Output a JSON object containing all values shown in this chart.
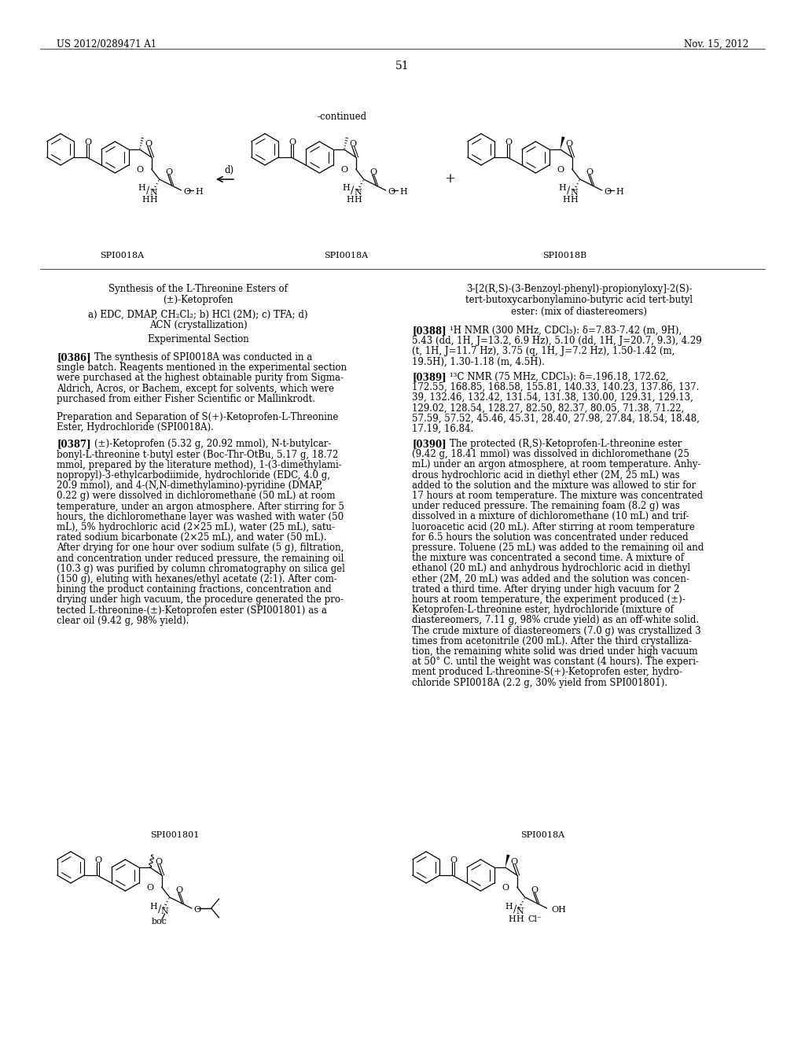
{
  "page_header_left": "US 2012/0289471 A1",
  "page_header_right": "Nov. 15, 2012",
  "page_number": "51",
  "continued_label": "-continued",
  "label_top1": "SPI0018A",
  "label_top2": "SPI0018A",
  "label_top3": "SPI0018B",
  "label_bot1": "SPI001801",
  "label_bot2": "SPI0018A",
  "reaction_arrow_label": "d)",
  "left_title1": "Synthesis of the L-Threonine Esters of",
  "left_title2": "(±)-Ketoprofen",
  "left_subtitle1": "a) EDC, DMAP, CH₂Cl₂; b) HCl (2M); c) TFA; d)",
  "left_subtitle2": "ACN (crystallization)",
  "left_heading": "Experimental Section",
  "right_title1": "3-[2(R,S)-(3-Benzoyl-phenyl)-propionyloxy]-2(S)-",
  "right_title2": "tert-butoxycarbonylamino-butyric acid tert-butyl",
  "right_title3": "ester: (mix of diastereomers)",
  "lines_386": [
    "[0386]   The synthesis of SPI0018A was conducted in a",
    "single batch. Reagents mentioned in the experimental section",
    "were purchased at the highest obtainable purity from Sigma-",
    "Aldrich, Acros, or Bachem, except for solvents, which were",
    "purchased from either Fisher Scientific or Mallinkrodt."
  ],
  "prep_heading1": "Preparation and Separation of S(+)-Ketoprofen-L-Threonine",
  "prep_heading2": "Ester, Hydrochloride (SPI0018A).",
  "lines_387": [
    "[0387]   (±)-Ketoprofen (5.32 g, 20.92 mmol), N-t-butylcar-",
    "bonyl-L-threonine t-butyl ester (Boc-Thr-OtBu, 5.17 g, 18.72",
    "mmol, prepared by the literature method), 1-(3-dimethylami-",
    "nopropyl)-3-ethylcarbodiimide, hydrochloride (EDC, 4.0 g,",
    "20.9 mmol), and 4-(N,N-dimethylamino)-pyridine (DMAP,",
    "0.22 g) were dissolved in dichloromethane (50 mL) at room",
    "temperature, under an argon atmosphere. After stirring for 5",
    "hours, the dichloromethane layer was washed with water (50",
    "mL), 5% hydrochloric acid (2×25 mL), water (25 mL), satu-",
    "rated sodium bicarbonate (2×25 mL), and water (50 mL).",
    "After drying for one hour over sodium sulfate (5 g), filtration,",
    "and concentration under reduced pressure, the remaining oil",
    "(10.3 g) was purified by column chromatography on silica gel",
    "(150 g), eluting with hexanes/ethyl acetate (2:1). After com-",
    "bining the product containing fractions, concentration and",
    "drying under high vacuum, the procedure generated the pro-",
    "tected L-threonine-(±)-Ketoprofen ester (SPI001801) as a",
    "clear oil (9.42 g, 98% yield)."
  ],
  "lines_388": [
    "[0388]   ¹H NMR (300 MHz, CDCl₃): δ=7.83-7.42 (m, 9H),",
    "5.43 (dd, 1H, J=13.2, 6.9 Hz), 5.10 (dd, 1H, J=20.7, 9.3), 4.29",
    "(t, 1H, J=11.7 Hz), 3.75 (q, 1H, J=7.2 Hz), 1.50-1.42 (m,",
    "19.5H), 1.30-1.18 (m, 4.5H)."
  ],
  "lines_389": [
    "[0389]   ¹³C NMR (75 MHz, CDCl₃): δ=.196.18, 172.62,",
    "172.55, 168.85, 168.58, 155.81, 140.33, 140.23, 137.86, 137.",
    "39, 132.46, 132.42, 131.54, 131.38, 130.00, 129.31, 129.13,",
    "129.02, 128.54, 128.27, 82.50, 82.37, 80.05, 71.38, 71.22,",
    "57.59, 57.52, 45.46, 45.31, 28.40, 27.98, 27.84, 18.54, 18.48,",
    "17.19, 16.84."
  ],
  "lines_390": [
    "[0390]   The protected (R,S)-Ketoprofen-L-threonine ester",
    "(9.42 g, 18.41 mmol) was dissolved in dichloromethane (25",
    "mL) under an argon atmosphere, at room temperature. Anhy-",
    "drous hydrochloric acid in diethyl ether (2M, 25 mL) was",
    "added to the solution and the mixture was allowed to stir for",
    "17 hours at room temperature. The mixture was concentrated",
    "under reduced pressure. The remaining foam (8.2 g) was",
    "dissolved in a mixture of dichloromethane (10 mL) and trif-",
    "luoroacetic acid (20 mL). After stirring at room temperature",
    "for 6.5 hours the solution was concentrated under reduced",
    "pressure. Toluene (25 mL) was added to the remaining oil and",
    "the mixture was concentrated a second time. A mixture of",
    "ethanol (20 mL) and anhydrous hydrochloric acid in diethyl",
    "ether (2M, 20 mL) was added and the solution was concen-",
    "trated a third time. After drying under high vacuum for 2",
    "hours at room temperature, the experiment produced (±)-",
    "Ketoprofen-L-threonine ester, hydrochloride (mixture of",
    "diastereomers, 7.11 g, 98% crude yield) as an off-white solid.",
    "The crude mixture of diastereomers (7.0 g) was crystallized 3",
    "times from acetonitrile (200 mL). After the third crystalliza-",
    "tion, the remaining white solid was dried under high vacuum",
    "at 50° C. until the weight was constant (4 hours). The experi-",
    "ment produced L-threonine-S(+)-Ketoprofen ester, hydro-",
    "chloride SPI0018A (2.2 g, 30% yield from SPI001801)."
  ]
}
